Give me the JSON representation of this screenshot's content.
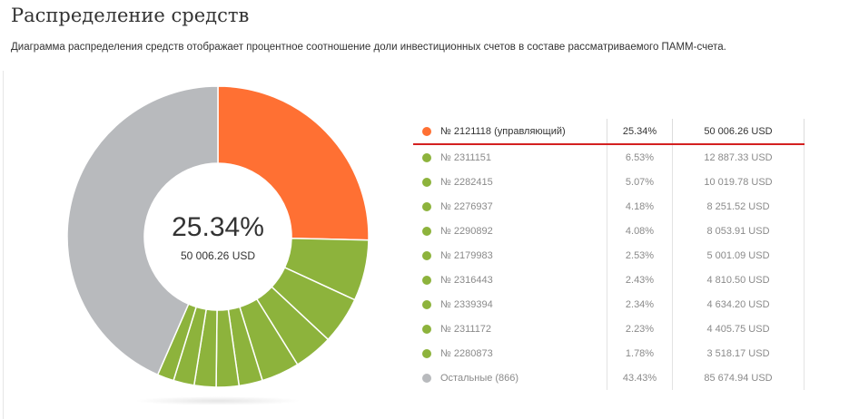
{
  "page": {
    "title": "Распределение средств",
    "description": "Диаграмма распределения средств отображает процентное соотношение доли инвестиционных счетов в составе рассматриваемого ПАММ-счета."
  },
  "center": {
    "percent": "25.34%",
    "amount": "50 006.26 USD"
  },
  "colors": {
    "manager": "#ff7033",
    "investor": "#8db33c",
    "others": "#b8babd",
    "highlight_line": "#d42020"
  },
  "legend": [
    {
      "name": "№ 2121118 (управляющий)",
      "percent": "25.34%",
      "amount": "50 006.26 USD",
      "kind": "manager"
    },
    {
      "name": "№ 2311151",
      "percent": "6.53%",
      "amount": "12 887.33 USD",
      "kind": "investor"
    },
    {
      "name": "№ 2282415",
      "percent": "5.07%",
      "amount": "10 019.78 USD",
      "kind": "investor"
    },
    {
      "name": "№ 2276937",
      "percent": "4.18%",
      "amount": "8 251.52 USD",
      "kind": "investor"
    },
    {
      "name": "№ 2290892",
      "percent": "4.08%",
      "amount": "8 053.91 USD",
      "kind": "investor"
    },
    {
      "name": "№ 2179983",
      "percent": "2.53%",
      "amount": "5 001.09 USD",
      "kind": "investor"
    },
    {
      "name": "№ 2316443",
      "percent": "2.43%",
      "amount": "4 810.50 USD",
      "kind": "investor"
    },
    {
      "name": "№ 2339394",
      "percent": "2.34%",
      "amount": "4 634.20 USD",
      "kind": "investor"
    },
    {
      "name": "№ 2311172",
      "percent": "2.23%",
      "amount": "4 405.75 USD",
      "kind": "investor"
    },
    {
      "name": "№ 2280873",
      "percent": "1.78%",
      "amount": "3 518.17 USD",
      "kind": "investor"
    },
    {
      "name": "Остальные (866)",
      "percent": "43.43%",
      "amount": "85 674.94 USD",
      "kind": "others"
    }
  ],
  "chart_data": {
    "type": "pie",
    "categories": [
      "№ 2121118 (управляющий)",
      "№ 2311151",
      "№ 2282415",
      "№ 2276937",
      "№ 2290892",
      "№ 2179983",
      "№ 2316443",
      "№ 2339394",
      "№ 2311172",
      "№ 2280873",
      "Остальные (866)"
    ],
    "values": [
      25.34,
      6.53,
      5.07,
      4.18,
      4.08,
      2.53,
      2.43,
      2.34,
      2.23,
      1.78,
      43.43
    ]
  }
}
